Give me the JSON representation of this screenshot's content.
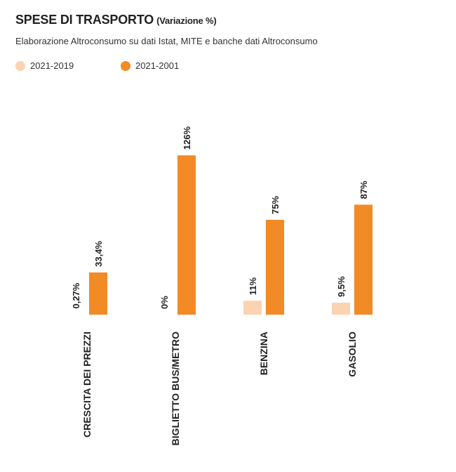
{
  "header": {
    "title": "SPESE DI TRASPORTO",
    "title_suffix": "(Variazione %)",
    "subtitle": "Elaborazione Altroconsumo su dati Istat, MITE e banche dati Altroconsumo"
  },
  "colors": {
    "series_2021_2019": "#fcd3b0",
    "series_2021_2001": "#f28a25",
    "text": "#222222"
  },
  "chart_data": {
    "type": "bar",
    "title": "SPESE DI TRASPORTO (Variazione %)",
    "categories": [
      "CRESCITA DEI PREZZI",
      "BIGLIETTO BUS/METRO",
      "BENZINA",
      "GASOLIO"
    ],
    "series": [
      {
        "name": "2021-2019",
        "values": [
          0.27,
          0,
          11,
          9.5
        ],
        "labels": [
          "0,27%",
          "0%",
          "11%",
          "9,5%"
        ]
      },
      {
        "name": "2021-2001",
        "values": [
          33.4,
          126,
          75,
          87
        ],
        "labels": [
          "33,4%",
          "126%",
          "75%",
          "87%"
        ]
      }
    ],
    "ylim": [
      0,
      126
    ],
    "legend_position": "top-left",
    "grid": false,
    "xlabel": "",
    "ylabel": ""
  }
}
